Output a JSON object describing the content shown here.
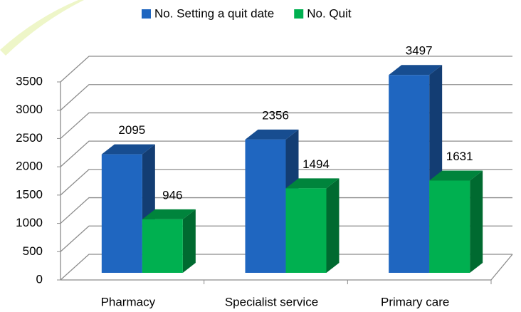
{
  "chart_data": {
    "type": "bar3d",
    "categories": [
      "Pharmacy",
      "Specialist service",
      "Primary care"
    ],
    "series": [
      {
        "name": "No. Setting a quit date",
        "color": "#1f66c0",
        "values": [
          2095,
          2356,
          3497
        ]
      },
      {
        "name": "No. Quit",
        "color": "#00b050",
        "values": [
          946,
          1494,
          1631
        ]
      }
    ],
    "ylim": [
      0,
      3500
    ],
    "yticks": [
      0,
      500,
      1000,
      1500,
      2000,
      2500,
      3000,
      3500
    ],
    "grid": true,
    "legend": "top",
    "data_labels": true
  }
}
